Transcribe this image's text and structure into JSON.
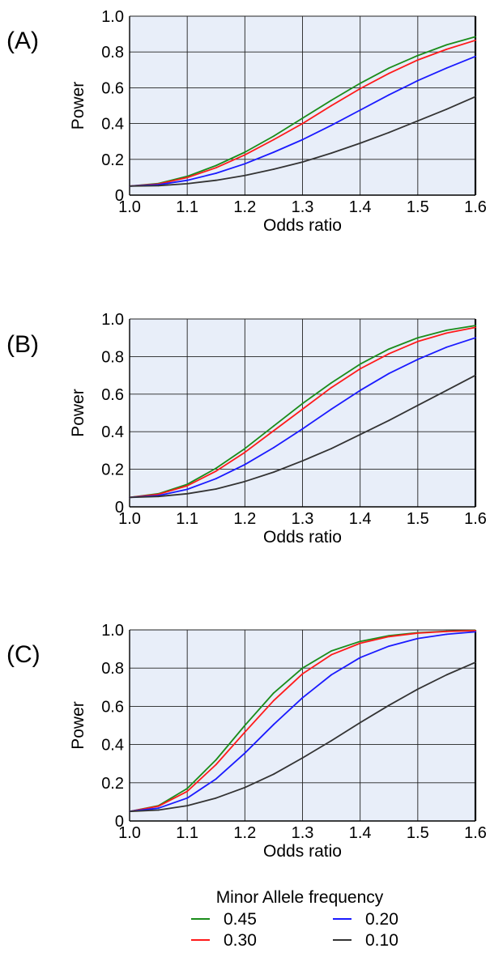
{
  "legend": {
    "title": "Minor Allele frequency",
    "entries": [
      {
        "label": "0.45",
        "color": "#1a8c1a"
      },
      {
        "label": "0.20",
        "color": "#1a1aff"
      },
      {
        "label": "0.30",
        "color": "#ff1a1a"
      },
      {
        "label": "0.10",
        "color": "#333333"
      }
    ]
  },
  "chart_data": [
    {
      "type": "line",
      "panel_label": "(A)",
      "xlabel": "Odds ratio",
      "ylabel": "Power",
      "xlim": [
        1.0,
        1.6
      ],
      "ylim": [
        0,
        1.0
      ],
      "xticks": [
        "1.0",
        "1.1",
        "1.2",
        "1.3",
        "1.4",
        "1.5",
        "1.6"
      ],
      "yticks": [
        "0",
        "0.2",
        "0.4",
        "0.6",
        "0.8",
        "1.0"
      ],
      "grid": true,
      "x": [
        1.0,
        1.05,
        1.1,
        1.15,
        1.2,
        1.25,
        1.3,
        1.35,
        1.4,
        1.45,
        1.5,
        1.55,
        1.6
      ],
      "series": [
        {
          "name": "0.45",
          "color": "#1a8c1a",
          "values": [
            0.05,
            0.065,
            0.105,
            0.165,
            0.24,
            0.33,
            0.43,
            0.53,
            0.625,
            0.71,
            0.78,
            0.84,
            0.885
          ]
        },
        {
          "name": "0.30",
          "color": "#ff1a1a",
          "values": [
            0.05,
            0.062,
            0.098,
            0.153,
            0.225,
            0.31,
            0.4,
            0.5,
            0.595,
            0.68,
            0.755,
            0.815,
            0.865
          ]
        },
        {
          "name": "0.20",
          "color": "#1a1aff",
          "values": [
            0.05,
            0.058,
            0.083,
            0.122,
            0.175,
            0.24,
            0.31,
            0.39,
            0.475,
            0.56,
            0.64,
            0.71,
            0.775
          ]
        },
        {
          "name": "0.10",
          "color": "#333333",
          "values": [
            0.05,
            0.053,
            0.064,
            0.083,
            0.11,
            0.145,
            0.185,
            0.235,
            0.29,
            0.35,
            0.415,
            0.48,
            0.55
          ]
        }
      ]
    },
    {
      "type": "line",
      "panel_label": "(B)",
      "xlabel": "Odds ratio",
      "ylabel": "Power",
      "xlim": [
        1.0,
        1.6
      ],
      "ylim": [
        0,
        1.0
      ],
      "xticks": [
        "1.0",
        "1.1",
        "1.2",
        "1.3",
        "1.4",
        "1.5",
        "1.6"
      ],
      "yticks": [
        "0",
        "0.2",
        "0.4",
        "0.6",
        "0.8",
        "1.0"
      ],
      "grid": true,
      "x": [
        1.0,
        1.05,
        1.1,
        1.15,
        1.2,
        1.25,
        1.3,
        1.35,
        1.4,
        1.45,
        1.5,
        1.55,
        1.6
      ],
      "series": [
        {
          "name": "0.45",
          "color": "#1a8c1a",
          "values": [
            0.05,
            0.07,
            0.12,
            0.205,
            0.31,
            0.43,
            0.55,
            0.66,
            0.76,
            0.84,
            0.9,
            0.94,
            0.965
          ]
        },
        {
          "name": "0.30",
          "color": "#ff1a1a",
          "values": [
            0.05,
            0.067,
            0.112,
            0.19,
            0.29,
            0.405,
            0.52,
            0.635,
            0.735,
            0.815,
            0.88,
            0.925,
            0.955
          ]
        },
        {
          "name": "0.20",
          "color": "#1a1aff",
          "values": [
            0.05,
            0.06,
            0.093,
            0.15,
            0.225,
            0.315,
            0.415,
            0.52,
            0.62,
            0.71,
            0.785,
            0.85,
            0.9
          ]
        },
        {
          "name": "0.10",
          "color": "#333333",
          "values": [
            0.05,
            0.055,
            0.07,
            0.095,
            0.135,
            0.185,
            0.245,
            0.31,
            0.385,
            0.46,
            0.54,
            0.62,
            0.7
          ]
        }
      ]
    },
    {
      "type": "line",
      "panel_label": "(C)",
      "xlabel": "Odds ratio",
      "ylabel": "Power",
      "xlim": [
        1.0,
        1.6
      ],
      "ylim": [
        0,
        1.0
      ],
      "xticks": [
        "1.0",
        "1.1",
        "1.2",
        "1.3",
        "1.4",
        "1.5",
        "1.6"
      ],
      "yticks": [
        "0",
        "0.2",
        "0.4",
        "0.6",
        "0.8",
        "1.0"
      ],
      "grid": true,
      "x": [
        1.0,
        1.05,
        1.1,
        1.15,
        1.2,
        1.25,
        1.3,
        1.35,
        1.4,
        1.45,
        1.5,
        1.55,
        1.6
      ],
      "series": [
        {
          "name": "0.45",
          "color": "#1a8c1a",
          "values": [
            0.05,
            0.08,
            0.17,
            0.32,
            0.5,
            0.67,
            0.8,
            0.89,
            0.94,
            0.97,
            0.985,
            0.993,
            0.997
          ]
        },
        {
          "name": "0.30",
          "color": "#ff1a1a",
          "values": [
            0.05,
            0.077,
            0.155,
            0.295,
            0.465,
            0.63,
            0.77,
            0.87,
            0.93,
            0.965,
            0.983,
            0.992,
            0.996
          ]
        },
        {
          "name": "0.20",
          "color": "#1a1aff",
          "values": [
            0.05,
            0.067,
            0.12,
            0.22,
            0.355,
            0.505,
            0.645,
            0.765,
            0.855,
            0.915,
            0.955,
            0.977,
            0.99
          ]
        },
        {
          "name": "0.10",
          "color": "#333333",
          "values": [
            0.05,
            0.057,
            0.08,
            0.12,
            0.175,
            0.245,
            0.33,
            0.42,
            0.515,
            0.605,
            0.69,
            0.765,
            0.83
          ]
        }
      ]
    }
  ]
}
